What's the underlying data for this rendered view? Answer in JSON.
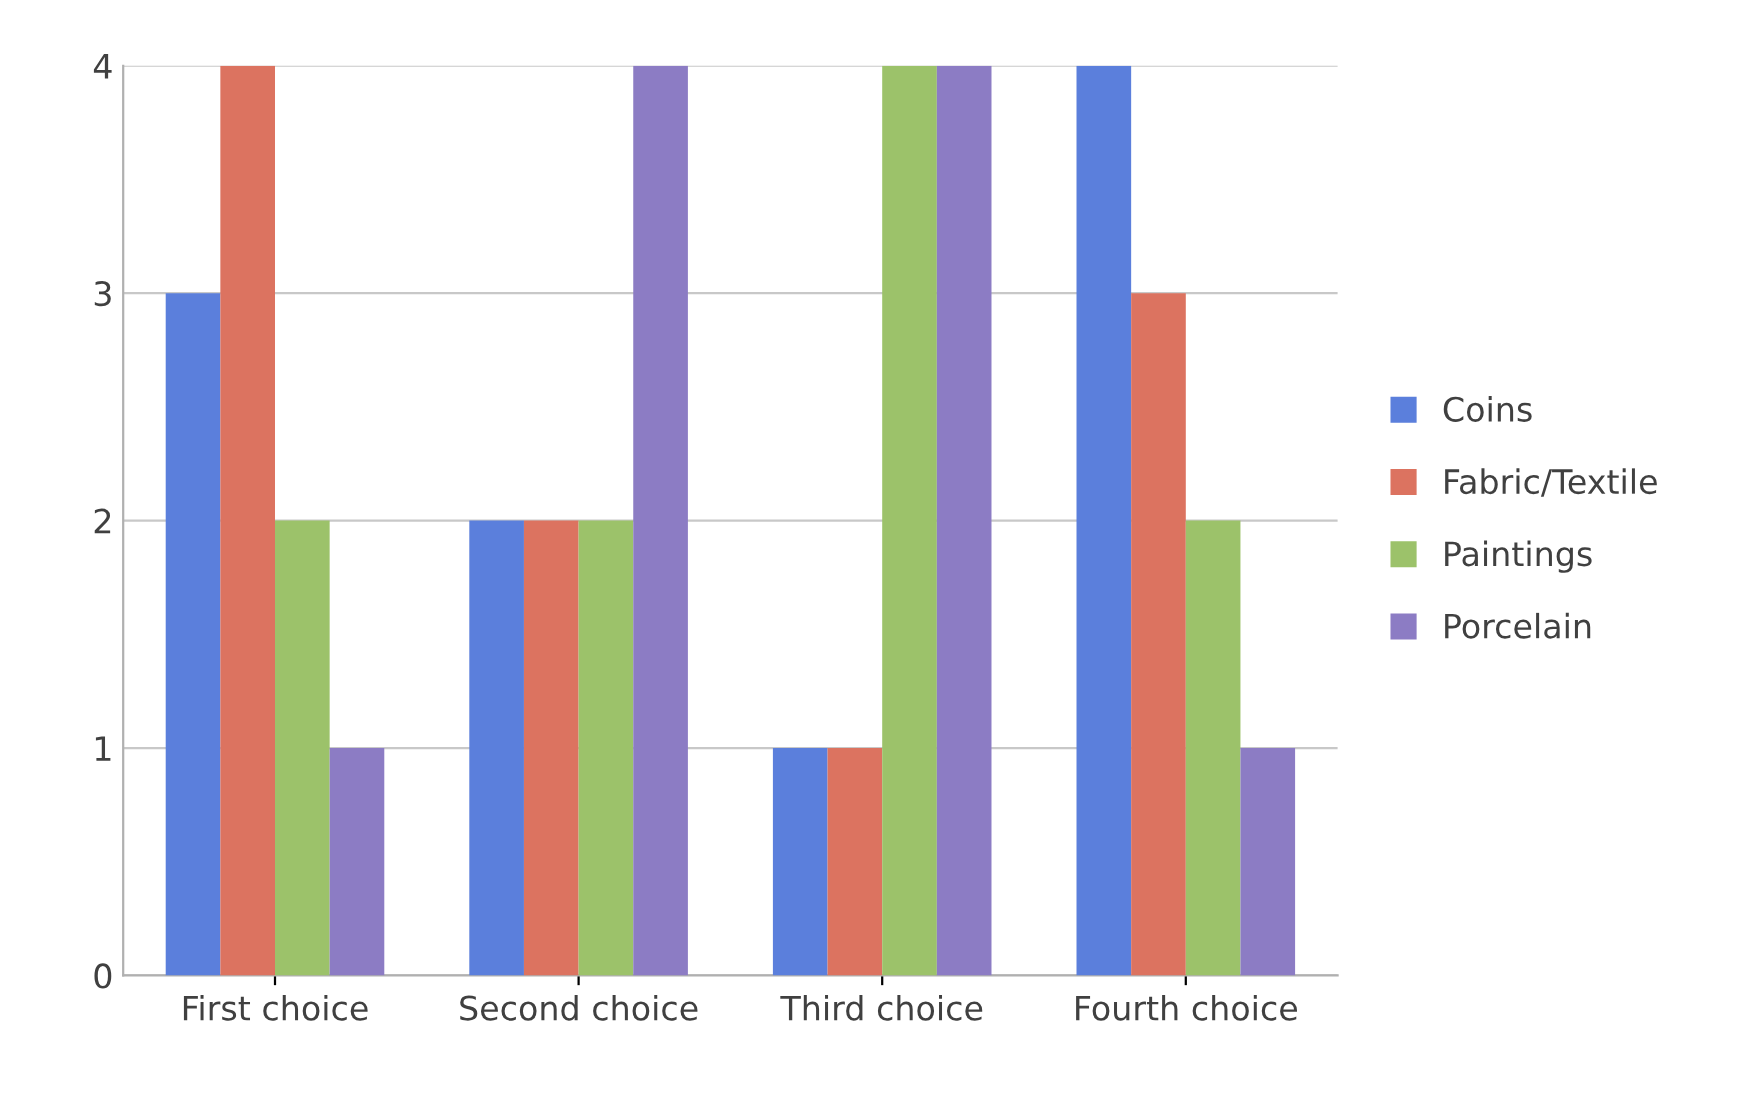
{
  "chart_data": {
    "type": "bar",
    "categories": [
      "First choice",
      "Second choice",
      "Third choice",
      "Fourth choice"
    ],
    "series": [
      {
        "name": "Coins",
        "color": "#5b7fdc",
        "values": [
          3,
          2,
          1,
          4
        ]
      },
      {
        "name": "Fabric/Textile",
        "color": "#dc7360",
        "values": [
          4,
          2,
          1,
          3
        ]
      },
      {
        "name": "Paintings",
        "color": "#9cc26a",
        "values": [
          2,
          2,
          4,
          2
        ]
      },
      {
        "name": "Porcelain",
        "color": "#8c7cc4",
        "values": [
          1,
          4,
          4,
          1
        ]
      }
    ],
    "ylim": [
      0,
      4
    ],
    "yticks": [
      0,
      1,
      2,
      3,
      4
    ],
    "grid": "y",
    "legend": "right"
  }
}
